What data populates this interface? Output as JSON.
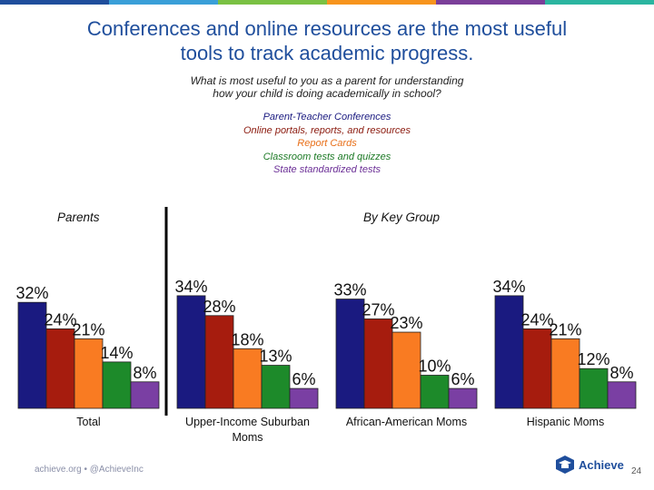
{
  "title_line1": "Conferences and online resources are the most useful",
  "title_line2": "tools to track academic progress.",
  "subtitle_line1": "What is most useful to you as a parent for understanding",
  "subtitle_line2": "how your child is doing academically in school?",
  "left_group_label": "Parents",
  "right_group_label": "By Key Group",
  "footer_text": "achieve.org • @AchieveInc",
  "logo_text": "Achieve",
  "page_number": "24",
  "stripe_colors": [
    "#1f4e9c",
    "#3a9fd8",
    "#7ac143",
    "#f7941d",
    "#7b3f99",
    "#2bb5a0"
  ],
  "chart_data": {
    "type": "bar",
    "title": "Conferences and online resources are the most useful tools to track academic progress.",
    "xlabel": "",
    "ylabel": "",
    "ylim": [
      0,
      40
    ],
    "categories": [
      "Total",
      "Upper-Income Suburban Moms",
      "African-American Moms",
      "Hispanic Moms"
    ],
    "series": [
      {
        "name": "Parent-Teacher Conferences",
        "color": "#1a1a80",
        "label_color": "#1a1a80",
        "values": [
          32,
          34,
          33,
          34
        ]
      },
      {
        "name": "Online portals, reports, and resources",
        "color": "#a61c0e",
        "label_color": "#8b1a0e",
        "values": [
          24,
          28,
          27,
          24
        ]
      },
      {
        "name": "Report Cards",
        "color": "#f97b22",
        "label_color": "#e8701a",
        "values": [
          21,
          18,
          23,
          21
        ]
      },
      {
        "name": "Classroom tests and quizzes",
        "color": "#1d8a2a",
        "label_color": "#1d7a26",
        "values": [
          14,
          13,
          10,
          12
        ]
      },
      {
        "name": "State standardized tests",
        "color": "#7a3fa3",
        "label_color": "#6b2f96",
        "values": [
          8,
          6,
          6,
          8
        ]
      }
    ],
    "value_labels": [
      [
        "32%",
        "24%",
        "21%",
        "14%",
        "8%"
      ],
      [
        "34%",
        "28%",
        "18%",
        "13%",
        "6%"
      ],
      [
        "33%",
        "27%",
        "23%",
        "10%",
        "6%"
      ],
      [
        "34%",
        "24%",
        "21%",
        "12%",
        "8%"
      ]
    ]
  }
}
